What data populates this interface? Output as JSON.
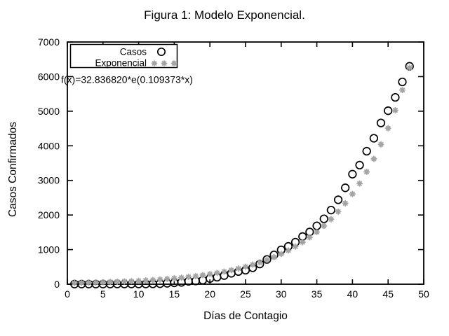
{
  "figure": {
    "background": "#ffffff",
    "text_color": "#000000",
    "axis_color": "#000000"
  },
  "chart_data": {
    "type": "scatter",
    "title": "Figura 1: Modelo Exponencial.",
    "xlabel": "Días de Contagio",
    "ylabel": "Casos Confirmados",
    "xlim": [
      0,
      50
    ],
    "ylim": [
      0,
      7000
    ],
    "x_ticks": [
      0,
      5,
      10,
      15,
      20,
      25,
      30,
      35,
      40,
      45,
      50
    ],
    "y_ticks": [
      0,
      1000,
      2000,
      3000,
      4000,
      5000,
      6000,
      7000
    ],
    "grid": false,
    "legend_position": "top-left",
    "annotation": "f(x)=32.836820*e(0.109373*x)",
    "x": [
      1,
      2,
      3,
      4,
      5,
      6,
      7,
      8,
      9,
      10,
      11,
      12,
      13,
      14,
      15,
      16,
      17,
      18,
      19,
      20,
      21,
      22,
      23,
      24,
      25,
      26,
      27,
      28,
      29,
      30,
      31,
      32,
      33,
      34,
      35,
      36,
      37,
      38,
      39,
      40,
      41,
      42,
      43,
      44,
      45,
      46,
      47,
      48
    ],
    "series": [
      {
        "name": "Casos",
        "marker": "open-circle",
        "color": "#000000",
        "values": [
          4,
          5,
          5,
          5,
          5,
          5,
          6,
          6,
          7,
          7,
          7,
          11,
          15,
          26,
          41,
          53,
          82,
          93,
          118,
          164,
          203,
          251,
          316,
          367,
          405,
          475,
          585,
          717,
          848,
          993,
          1094,
          1215,
          1378,
          1510,
          1688,
          1890,
          2143,
          2439,
          2785,
          3181,
          3441,
          3844,
          4219,
          4661,
          5014,
          5399,
          5847,
          6297
        ]
      },
      {
        "name": "Exponencial",
        "marker": "asterisk",
        "color": "#a4a4a4",
        "values": [
          36.6,
          40.9,
          45.6,
          50.9,
          56.7,
          63.3,
          70.6,
          78.8,
          87.9,
          98.0,
          109.4,
          122.0,
          136.1,
          151.8,
          169.4,
          189.0,
          210.8,
          235.2,
          262.3,
          292.7,
          326.5,
          364.2,
          406.3,
          453.3,
          505.7,
          564.1,
          629.3,
          702.1,
          783.2,
          873.7,
          974.7,
          1087.4,
          1213.1,
          1353.3,
          1509.7,
          1684.2,
          1878.9,
          2096.0,
          2338.3,
          2608.6,
          2910.1,
          3246.4,
          3621.6,
          4040.2,
          4507.2,
          5028.2,
          5609.4,
          6257.7
        ]
      }
    ]
  }
}
